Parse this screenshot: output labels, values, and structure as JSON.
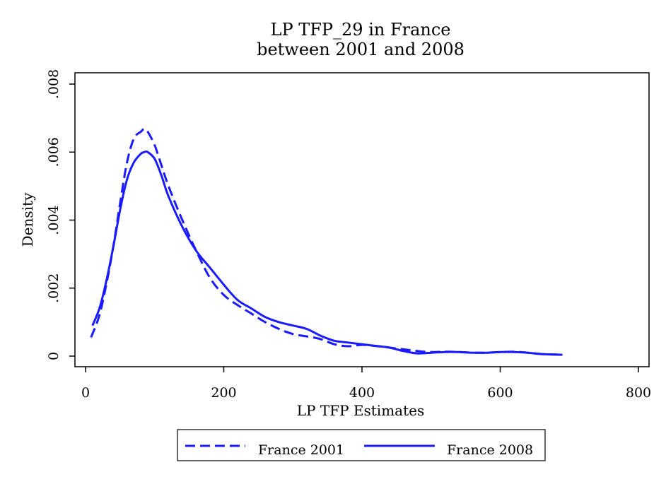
{
  "chart_data": {
    "type": "line",
    "title": "LP TFP_29 in France",
    "subtitle": "between 2001 and 2008",
    "xlabel": "LP TFP Estimates",
    "ylabel": "Density",
    "xlim": [
      0,
      800
    ],
    "ylim": [
      0,
      0.008
    ],
    "xticks": [
      0,
      200,
      400,
      600,
      800
    ],
    "xtick_labels": [
      "0",
      "200",
      "400",
      "600",
      "800"
    ],
    "yticks": [
      0,
      0.002,
      0.004,
      0.006,
      0.008
    ],
    "ytick_labels": [
      "0",
      ".002",
      ".004",
      ".006",
      ".008"
    ],
    "grid": false,
    "legend_position": "bottom",
    "series": [
      {
        "name": "France 2001",
        "style": "dashed",
        "color": "#1a1aff",
        "x": [
          8,
          20,
          30,
          40,
          50,
          60,
          70,
          80,
          85,
          90,
          100,
          110,
          120,
          140,
          160,
          180,
          200,
          220,
          240,
          260,
          280,
          300,
          320,
          340,
          360,
          380,
          400,
          420,
          440,
          460,
          480,
          500,
          520,
          540,
          560,
          580,
          600,
          620,
          640,
          660,
          690
        ],
        "y": [
          0.00055,
          0.0012,
          0.0021,
          0.0032,
          0.0045,
          0.0057,
          0.0064,
          0.0066,
          0.00668,
          0.0066,
          0.0062,
          0.0056,
          0.005,
          0.004,
          0.0031,
          0.0023,
          0.0018,
          0.0015,
          0.00125,
          0.001,
          0.0008,
          0.00065,
          0.00058,
          0.0005,
          0.00035,
          0.00029,
          0.00033,
          0.0003,
          0.00025,
          0.0002,
          0.00015,
          0.00012,
          0.00013,
          0.00012,
          0.0001,
          0.0001,
          0.00012,
          0.00013,
          0.0001,
          6e-05,
          4e-05
        ]
      },
      {
        "name": "France 2008",
        "style": "solid",
        "color": "#1a1aff",
        "x": [
          10,
          20,
          30,
          40,
          50,
          60,
          70,
          80,
          85,
          90,
          100,
          110,
          120,
          140,
          160,
          180,
          200,
          220,
          240,
          260,
          280,
          300,
          320,
          340,
          360,
          380,
          400,
          420,
          440,
          460,
          480,
          500,
          520,
          540,
          560,
          580,
          600,
          620,
          640,
          660,
          690
        ],
        "y": [
          0.0009,
          0.0014,
          0.0022,
          0.0032,
          0.0043,
          0.0052,
          0.0057,
          0.00595,
          0.006,
          0.006,
          0.0058,
          0.0053,
          0.0047,
          0.0038,
          0.0031,
          0.0026,
          0.0021,
          0.00165,
          0.0014,
          0.00115,
          0.001,
          0.0009,
          0.0008,
          0.0006,
          0.00045,
          0.0004,
          0.00035,
          0.0003,
          0.00025,
          0.00015,
          8e-05,
          0.0001,
          0.00012,
          0.00012,
          0.0001,
          0.0001,
          0.00012,
          0.00012,
          0.0001,
          6e-05,
          4e-05
        ]
      }
    ]
  }
}
